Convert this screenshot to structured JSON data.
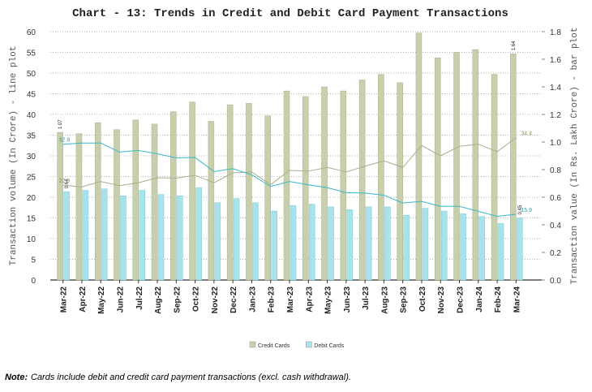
{
  "chart_data": {
    "type": "combo",
    "title": "Chart - 13: Trends in Credit and Debit Card Payment Transactions",
    "y_label": "Transaction volume (In Crore) - line plot",
    "y2_label": "Transaction value (In Rs. Lakh Crore) - bar plot",
    "categories": [
      "Mar-22",
      "Apr-22",
      "May-22",
      "Jun-22",
      "Jul-22",
      "Aug-22",
      "Sep-22",
      "Oct-22",
      "Nov-22",
      "Dec-22",
      "Jan-23",
      "Feb-23",
      "Mar-23",
      "Apr-23",
      "May-23",
      "Jun-23",
      "Jul-23",
      "Aug-23",
      "Sep-23",
      "Oct-23",
      "Nov-23",
      "Dec-23",
      "Jan-24",
      "Feb-24",
      "Mar-24"
    ],
    "ylim": [
      0,
      60
    ],
    "yticks": [
      0,
      5,
      10,
      15,
      20,
      25,
      30,
      35,
      40,
      45,
      50,
      55,
      60
    ],
    "y2lim": [
      0,
      1.8
    ],
    "y2ticks": [
      {
        "value": 0,
        "label": "0.0"
      },
      0.2,
      0.4,
      0.6,
      0.8,
      {
        "value": 1,
        "label": "1.0"
      },
      1.2,
      1.4,
      1.6,
      1.8
    ],
    "grid": true,
    "legend": "bottom",
    "series": [
      {
        "name": "Credit Cards",
        "type": "bar",
        "axis": "y2",
        "color": "#c8cfac",
        "values": [
          1.07,
          1.06,
          1.14,
          1.09,
          1.16,
          1.13,
          1.22,
          1.29,
          1.15,
          1.27,
          1.28,
          1.19,
          1.37,
          1.33,
          1.4,
          1.37,
          1.45,
          1.49,
          1.43,
          1.79,
          1.61,
          1.65,
          1.67,
          1.49,
          1.64
        ]
      },
      {
        "name": "Debit Cards",
        "type": "bar",
        "axis": "y2",
        "color": "#a8e2ea",
        "values": [
          0.64,
          0.65,
          0.66,
          0.61,
          0.65,
          0.62,
          0.61,
          0.67,
          0.56,
          0.59,
          0.56,
          0.5,
          0.54,
          0.55,
          0.53,
          0.51,
          0.53,
          0.53,
          0.47,
          0.52,
          0.5,
          0.48,
          0.46,
          0.41,
          0.45
        ]
      },
      {
        "type": "line",
        "color": "#a9b08a",
        "values": [
          22.9,
          22.5,
          23.8,
          22.8,
          23.5,
          24.7,
          24.6,
          25.3,
          23.5,
          25.9,
          26.1,
          23,
          26.5,
          26.3,
          27.2,
          26.1,
          27.5,
          28.8,
          27.2,
          32.5,
          30,
          32.3,
          32.8,
          31,
          34.4
        ]
      },
      {
        "type": "line",
        "color": "#3bb8c8",
        "values": [
          32.8,
          33.1,
          33.1,
          30.9,
          31.3,
          30.5,
          29.5,
          29.6,
          26.2,
          26.9,
          25.4,
          22.6,
          23.8,
          23,
          22.3,
          21.1,
          21,
          20.5,
          18.6,
          19,
          17.8,
          17.8,
          16.6,
          15.4,
          15.9
        ]
      }
    ],
    "note_prefix": "Note:",
    "note": "Cards include debit and credit card payment transactions (excl. cash withdrawal)."
  }
}
